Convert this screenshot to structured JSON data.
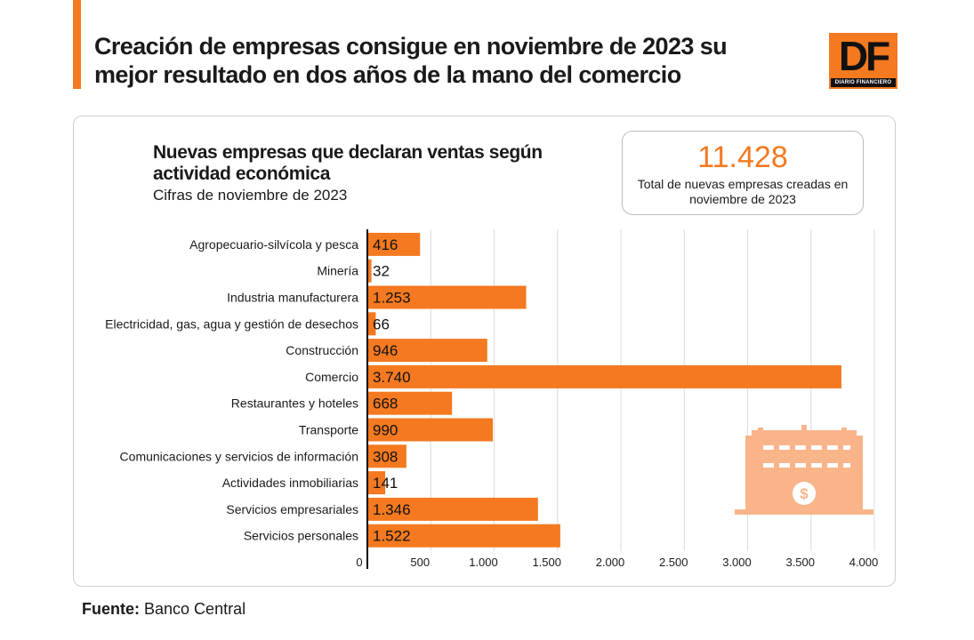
{
  "header": {
    "title": "Creación de empresas consigue en noviembre de 2023 su mejor resultado en dos años de la mano del comercio",
    "logo_text": "DF",
    "logo_subtext": "DIARIO FINANCIERO"
  },
  "stat": {
    "value": "11.428",
    "label": "Total de nuevas empresas creadas en noviembre de 2023"
  },
  "footer": {
    "source_label": "Fuente:",
    "source_value": "Banco Central"
  },
  "colors": {
    "accent": "#f47920",
    "illustration": "#f9b48a"
  },
  "decoration": {
    "icon": "building-with-dollar-icon"
  },
  "chart_data": {
    "type": "bar",
    "orientation": "horizontal",
    "title": "Nuevas empresas que declaran ventas según actividad económica",
    "subtitle": "Cifras de noviembre de 2023",
    "categories": [
      "Agropecuario-silvícola y pesca",
      "Minería",
      "Industria manufacturera",
      "Electricidad, gas, agua y gestión de desechos",
      "Construcción",
      "Comercio",
      "Restaurantes y hoteles",
      "Transporte",
      "Comunicaciones y servicios de información",
      "Actividades inmobiliarias",
      "Servicios empresariales",
      "Servicios personales"
    ],
    "values": [
      416,
      32,
      1253,
      66,
      946,
      3740,
      668,
      990,
      308,
      141,
      1346,
      1522
    ],
    "value_labels": [
      "416",
      "32",
      "1.253",
      "66",
      "946",
      "3.740",
      "668",
      "990",
      "308",
      "141",
      "1.346",
      "1.522"
    ],
    "xlim": [
      0,
      4000
    ],
    "ticks": [
      0,
      500,
      1000,
      1500,
      2000,
      2500,
      3000,
      3500,
      4000
    ],
    "tick_labels": [
      "0",
      "500",
      "1.000",
      "1.500",
      "2.000",
      "2.500",
      "3.000",
      "3.500",
      "4.000"
    ],
    "grid": true,
    "legend": false
  }
}
